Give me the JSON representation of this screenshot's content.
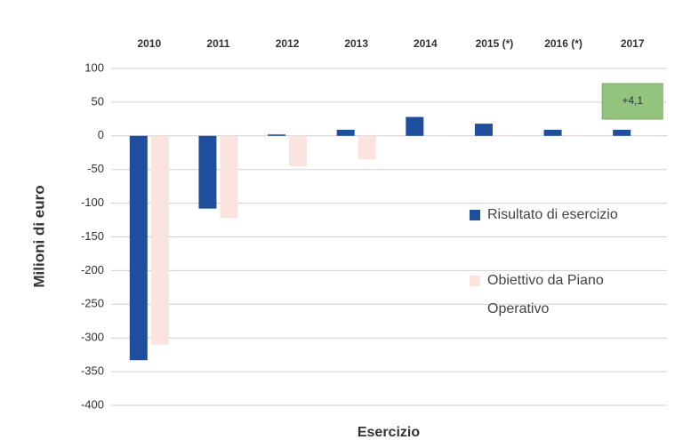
{
  "chart_data": {
    "type": "bar",
    "categories": [
      "2010",
      "2011",
      "2012",
      "2013",
      "2014",
      "2015 (*)",
      "2016 (*)",
      "2017"
    ],
    "series": [
      {
        "name": "Risultato di esercizio",
        "color": "#1f4e9c",
        "values": [
          -333,
          -108,
          2,
          9,
          28,
          18,
          9,
          9
        ]
      },
      {
        "name": "Obiettivo da Piano Operativo",
        "color": "#fbe3df",
        "values": [
          -310,
          -122,
          -45,
          -35,
          0,
          0,
          0,
          0
        ]
      }
    ],
    "ylim": [
      -400,
      100
    ],
    "yticks": [
      -400,
      -350,
      -300,
      -250,
      -200,
      -150,
      -100,
      -50,
      0,
      50,
      100
    ],
    "ylabel": "Milioni di euro",
    "xlabel": "Esercizio",
    "annotation": "+4,1",
    "annotation_color": "#93c47d",
    "grid": true,
    "legend": "right"
  }
}
